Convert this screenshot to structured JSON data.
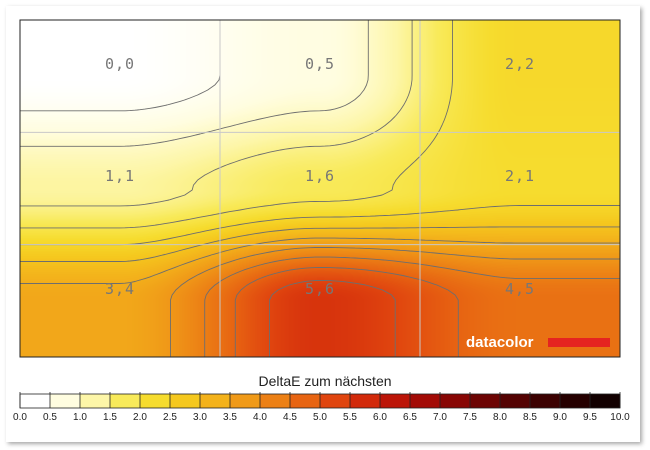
{
  "chart_data": {
    "type": "heatmap",
    "title": "DeltaE zum nächsten",
    "rows": 3,
    "cols": 3,
    "cells": [
      [
        "0,0",
        "0,5",
        "2,2"
      ],
      [
        "1,1",
        "1,6",
        "2,1"
      ],
      [
        "3,4",
        "5,6",
        "4,5"
      ]
    ],
    "values": [
      [
        0.0,
        0.5,
        2.2
      ],
      [
        1.1,
        1.6,
        2.1
      ],
      [
        3.4,
        5.6,
        4.5
      ]
    ],
    "scale": {
      "min": 0.0,
      "max": 10.0,
      "ticks": [
        "0.0",
        "0.5",
        "1.0",
        "1.5",
        "2.0",
        "2.5",
        "3.0",
        "3.5",
        "4.0",
        "4.5",
        "5.0",
        "5.5",
        "6.0",
        "6.5",
        "7.0",
        "7.5",
        "8.0",
        "8.5",
        "9.0",
        "9.5",
        "10.0"
      ],
      "colors": [
        "#ffffff",
        "#fffde0",
        "#fdf6a8",
        "#f8ea5a",
        "#f6dc2e",
        "#f5c81e",
        "#f3b21b",
        "#f09a18",
        "#ec8015",
        "#e76412",
        "#e0450f",
        "#d22a0b",
        "#bc1508",
        "#a30b06",
        "#880604",
        "#6d0403",
        "#540202",
        "#3c0101",
        "#260000",
        "#120000"
      ]
    },
    "contours": [
      0.25,
      0.75,
      1.25,
      1.75,
      2.25,
      2.75,
      3.25,
      3.75,
      4.25,
      4.75,
      5.25
    ],
    "grid": true,
    "legend": "bottom"
  },
  "brand": {
    "name": "datacolor",
    "color": "#e52420"
  }
}
